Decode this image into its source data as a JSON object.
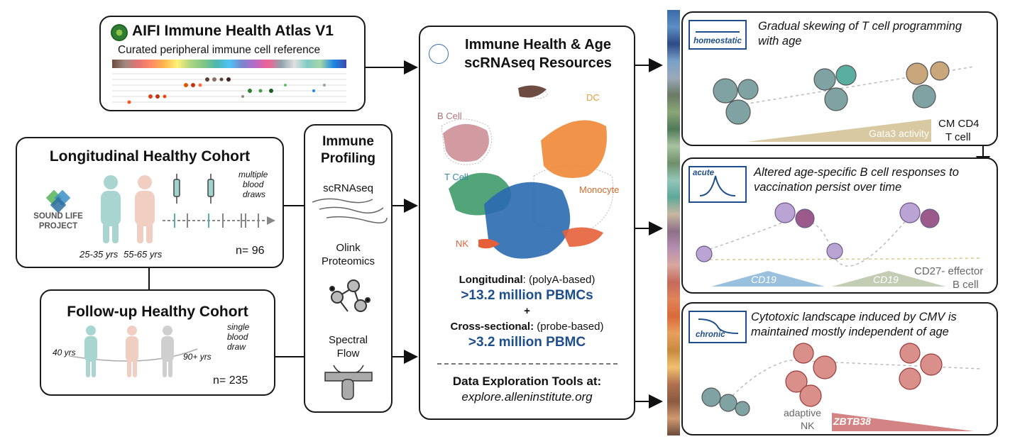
{
  "atlas": {
    "title": "AIFI Immune Health Atlas V1",
    "subtitle": "Curated peripheral immune cell reference"
  },
  "longitudinal": {
    "title": "Longitudinal Healthy Cohort",
    "logo_line1": "SOUND LIFE",
    "logo_line2": "PROJECT",
    "age_young": "25-35 yrs",
    "age_old": "55-65 yrs",
    "draw_note_1": "multiple",
    "draw_note_2": "blood",
    "draw_note_3": "draws",
    "n": "n= 96"
  },
  "followup": {
    "title": "Follow-up Healthy Cohort",
    "age_40": "40 yrs",
    "age_90": "90+ yrs",
    "draw_note_1": "single",
    "draw_note_2": "blood",
    "draw_note_3": "draw",
    "n": "n= 235"
  },
  "profiling": {
    "title_1": "Immune",
    "title_2": "Profiling",
    "method_1": "scRNAseq",
    "method_2_line1": "Olink",
    "method_2_line2": "Proteomics",
    "method_3_line1": "Spectral",
    "method_3_line2": "Flow"
  },
  "resources": {
    "title_1": "Immune Health & Age",
    "title_2": "scRNAseq Resources",
    "labels": {
      "bcell": "B Cell",
      "tcell": "T Cell",
      "nk": "NK",
      "dc": "DC",
      "monocyte": "Monocyte"
    },
    "longitudinal_label": "Longitudinal",
    "longitudinal_method": ": (polyA-based)",
    "longitudinal_count": ">13.2 million PBMCs",
    "plus": "+",
    "cross_label": "Cross-sectional:",
    "cross_method": " (probe-based)",
    "cross_count": ">3.2 million PBMC",
    "tools_title": "Data Exploration Tools at:",
    "tools_url": "explore.alleninstitute.org"
  },
  "findings": [
    {
      "badge": "homeostatic",
      "text_1": "Gradual skewing of T cell programming",
      "text_2": "with age",
      "gradient_label": "Gata3 activity",
      "cell_label_1": "CM CD4",
      "cell_label_2": "T cell"
    },
    {
      "badge": "acute",
      "text_1": "Altered age-specific B cell responses to",
      "text_2": "vaccination persist over time",
      "gradient_label_1": "CD19",
      "gradient_label_2": "CD19",
      "cell_label_1": "CD27- effector",
      "cell_label_2": "B cell"
    },
    {
      "badge": "chronic",
      "text_1": "Cytotoxic landscape induced by CMV is",
      "text_2": "maintained mostly independent of age",
      "gradient_label": "ZBTB38",
      "cell_label_1": "adaptive",
      "cell_label_2": "NK"
    }
  ],
  "colors": {
    "blue_text": "#1f4e8c",
    "teal_cell": "#5a9e9a",
    "bcell_purple": "#9b7fb8",
    "cmv_red": "#c45a5a",
    "gata3_gold": "#c9b27a"
  }
}
